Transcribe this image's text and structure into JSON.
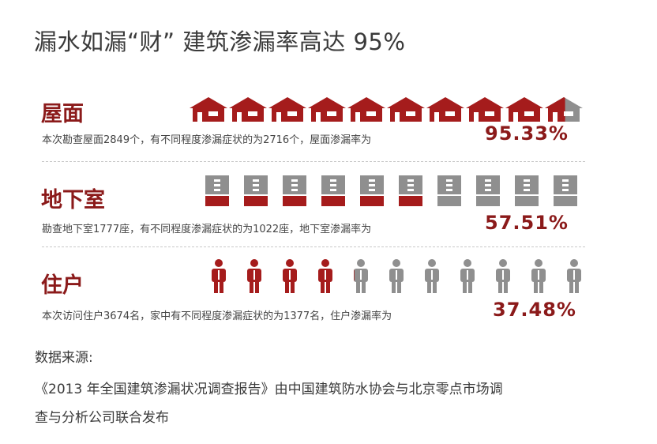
{
  "title": "漏水如漏“财” 建筑渗漏率高达 95%",
  "colors": {
    "accent": "#a51c1c",
    "gray": "#8f8f8f",
    "label": "#8b1a1a"
  },
  "chart_data": {
    "type": "pictograph",
    "rows": [
      {
        "label": "屋面",
        "icon": "house-icon",
        "surveyed": 2849,
        "leaking": 2716,
        "rate_text": "95.33%",
        "rate": 95.33,
        "icons_total": 10,
        "description": "本次勘查屋面2849个，有不同程度渗漏症状的为2716个，屋面渗漏率为"
      },
      {
        "label": "地下室",
        "icon": "building-icon",
        "surveyed": 1777,
        "leaking": 1022,
        "rate_text": "57.51%",
        "rate": 57.51,
        "icons_total": 10,
        "description": "勘查地下室1777座，有不同程度渗漏症状的为1022座，地下室渗漏率为"
      },
      {
        "label": "住户",
        "icon": "person-icon",
        "surveyed": 3674,
        "leaking": 1377,
        "rate_text": "37.48%",
        "rate": 37.48,
        "icons_total": 11,
        "description": "本次访问住户3674名，家中有不同程度渗漏症状的为1377名，住户渗漏率为"
      }
    ]
  },
  "source": {
    "heading": "数据来源:",
    "line1": "《2013 年全国建筑渗漏状况调查报告》由中国建筑防水协会与北京零点市场调",
    "line2": "查与分析公司联合发布"
  }
}
